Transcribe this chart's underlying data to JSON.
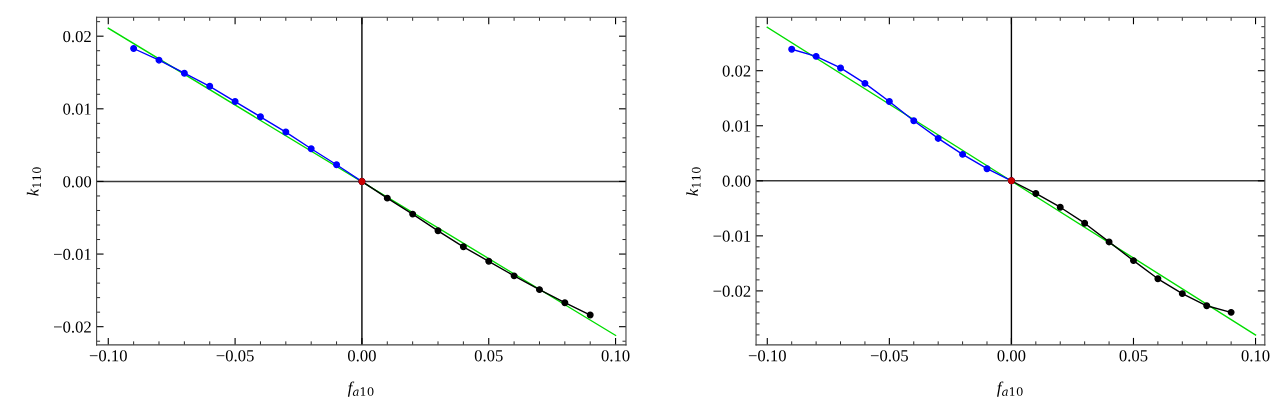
{
  "chart_data": [
    {
      "type": "line",
      "xlabel": "f$_{a10}$",
      "ylabel": "k$_{110}$",
      "xlim": [
        -0.1046,
        0.1041
      ],
      "ylim": [
        -0.0225,
        0.0226
      ],
      "xticks": [
        {
          "value": -0.1,
          "label": "−0.10"
        },
        {
          "value": -0.05,
          "label": "−0.05"
        },
        {
          "value": 0,
          "label": "0.00"
        },
        {
          "value": 0.05,
          "label": "0.05"
        },
        {
          "value": 0.1,
          "label": "0.10"
        }
      ],
      "yticks": [
        {
          "value": -0.02,
          "label": "−0.02"
        },
        {
          "value": -0.01,
          "label": "−0.01"
        },
        {
          "value": 0,
          "label": "0.00"
        },
        {
          "value": 0.01,
          "label": "0.01"
        },
        {
          "value": 0.02,
          "label": "0.02"
        }
      ],
      "marker": "circle",
      "grid": false,
      "legend": false,
      "ref_lines": [
        {
          "axis": "x",
          "value": 0,
          "color": "#000000"
        },
        {
          "axis": "y",
          "value": 0,
          "color": "#3a3a3a"
        }
      ],
      "series": [
        {
          "color": "#00dd00",
          "marker": "none",
          "x": [
            -0.1,
            0.1
          ],
          "values": [
            0.0211,
            -0.0212
          ]
        },
        {
          "color": "#0000ff",
          "x": [
            -0.09,
            -0.08,
            -0.07,
            -0.06,
            -0.05,
            -0.04,
            -0.03,
            -0.02,
            -0.01,
            0
          ],
          "values": [
            0.0183,
            0.0167,
            0.0149,
            0.0131,
            0.011,
            0.0089,
            0.0068,
            0.0045,
            0.0023,
            0
          ]
        },
        {
          "color": "#000000",
          "x": [
            0,
            0.01,
            0.02,
            0.03,
            0.04,
            0.05,
            0.06,
            0.07,
            0.08,
            0.09
          ],
          "values": [
            0,
            -0.0023,
            -0.0045,
            -0.0068,
            -0.009,
            -0.011,
            -0.013,
            -0.0149,
            -0.0167,
            -0.0184
          ]
        },
        {
          "color": "#cc0000",
          "type": "scatter",
          "x": [
            0
          ],
          "values": [
            0
          ]
        }
      ]
    },
    {
      "type": "line",
      "xlabel": "f$_{a10}$",
      "ylabel": "k$_{110}$",
      "xlim": [
        -0.1046,
        0.1038
      ],
      "ylim": [
        -0.0298,
        0.0297
      ],
      "xticks": [
        {
          "value": -0.1,
          "label": "−0.10"
        },
        {
          "value": -0.05,
          "label": "−0.05"
        },
        {
          "value": 0,
          "label": "0.00"
        },
        {
          "value": 0.05,
          "label": "0.05"
        },
        {
          "value": 0.1,
          "label": "0.10"
        }
      ],
      "yticks": [
        {
          "value": -0.02,
          "label": "−0.02"
        },
        {
          "value": -0.01,
          "label": "−0.01"
        },
        {
          "value": 0,
          "label": "0.00"
        },
        {
          "value": 0.01,
          "label": "0.01"
        },
        {
          "value": 0.02,
          "label": "0.02"
        }
      ],
      "marker": "circle",
      "grid": false,
      "legend": false,
      "ref_lines": [
        {
          "axis": "x",
          "value": 0,
          "color": "#000000"
        },
        {
          "axis": "y",
          "value": 0,
          "color": "#3a3a3a"
        }
      ],
      "series": [
        {
          "color": "#00dd00",
          "marker": "none",
          "x": [
            -0.1,
            0.1
          ],
          "values": [
            0.0279,
            -0.028
          ]
        },
        {
          "color": "#0000ff",
          "x": [
            -0.09,
            -0.08,
            -0.07,
            -0.06,
            -0.05,
            -0.04,
            -0.03,
            -0.02,
            -0.01,
            0
          ],
          "values": [
            0.0239,
            0.0226,
            0.0205,
            0.0177,
            0.0144,
            0.0109,
            0.0077,
            0.0048,
            0.0022,
            0
          ]
        },
        {
          "color": "#000000",
          "x": [
            0,
            0.01,
            0.02,
            0.03,
            0.04,
            0.05,
            0.06,
            0.07,
            0.08,
            0.09
          ],
          "values": [
            0,
            -0.0023,
            -0.0048,
            -0.0077,
            -0.0111,
            -0.0145,
            -0.0178,
            -0.0205,
            -0.0227,
            -0.0239
          ]
        },
        {
          "color": "#cc0000",
          "type": "scatter",
          "x": [
            0
          ],
          "values": [
            0
          ]
        }
      ]
    }
  ]
}
